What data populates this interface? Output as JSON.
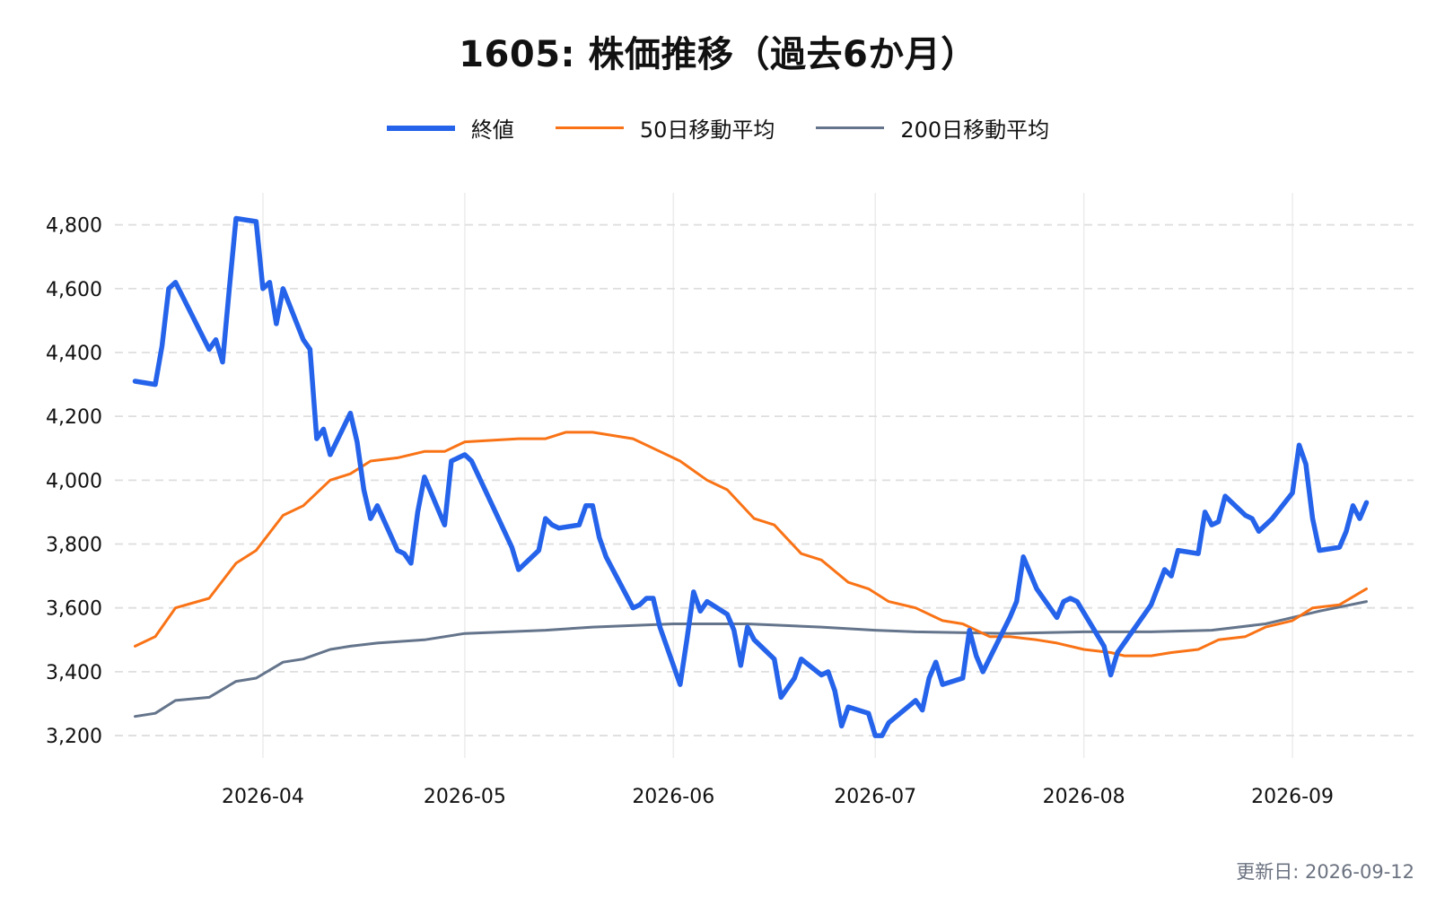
{
  "chart_data": {
    "type": "line",
    "title": "1605: 株価推移（過去6か月）",
    "xlabel": "",
    "ylabel": "",
    "x_range": [
      "2026-03-10",
      "2026-09-19"
    ],
    "ylim": [
      3130,
      4900
    ],
    "y_ticks": [
      3200,
      3400,
      3600,
      3800,
      4000,
      4200,
      4400,
      4600,
      4800
    ],
    "y_tick_labels": [
      "3,200",
      "3,400",
      "3,600",
      "3,800",
      "4,000",
      "4,200",
      "4,400",
      "4,600",
      "4,800"
    ],
    "x_ticks": [
      "2026-04-01",
      "2026-05-01",
      "2026-06-01",
      "2026-07-01",
      "2026-08-01",
      "2026-09-01"
    ],
    "x_tick_labels": [
      "2026-04",
      "2026-05",
      "2026-06",
      "2026-07",
      "2026-08",
      "2026-09"
    ],
    "grid": true,
    "legend_position": "top-center",
    "series": [
      {
        "name": "終値",
        "color": "#2563eb",
        "points": [
          [
            "2026-03-13",
            4310
          ],
          [
            "2026-03-16",
            4300
          ],
          [
            "2026-03-17",
            4420
          ],
          [
            "2026-03-18",
            4600
          ],
          [
            "2026-03-19",
            4620
          ],
          [
            "2026-03-24",
            4410
          ],
          [
            "2026-03-25",
            4440
          ],
          [
            "2026-03-26",
            4370
          ],
          [
            "2026-03-27",
            4600
          ],
          [
            "2026-03-28",
            4820
          ],
          [
            "2026-03-31",
            4810
          ],
          [
            "2026-04-01",
            4600
          ],
          [
            "2026-04-02",
            4620
          ],
          [
            "2026-04-03",
            4490
          ],
          [
            "2026-04-04",
            4600
          ],
          [
            "2026-04-07",
            4440
          ],
          [
            "2026-04-08",
            4410
          ],
          [
            "2026-04-09",
            4130
          ],
          [
            "2026-04-10",
            4160
          ],
          [
            "2026-04-11",
            4080
          ],
          [
            "2026-04-14",
            4210
          ],
          [
            "2026-04-15",
            4120
          ],
          [
            "2026-04-16",
            3970
          ],
          [
            "2026-04-17",
            3880
          ],
          [
            "2026-04-18",
            3920
          ],
          [
            "2026-04-21",
            3780
          ],
          [
            "2026-04-22",
            3770
          ],
          [
            "2026-04-23",
            3740
          ],
          [
            "2026-04-24",
            3900
          ],
          [
            "2026-04-25",
            4010
          ],
          [
            "2026-04-28",
            3860
          ],
          [
            "2026-04-29",
            4060
          ],
          [
            "2026-05-01",
            4080
          ],
          [
            "2026-05-02",
            4060
          ],
          [
            "2026-05-06",
            3880
          ],
          [
            "2026-05-08",
            3790
          ],
          [
            "2026-05-09",
            3720
          ],
          [
            "2026-05-12",
            3780
          ],
          [
            "2026-05-13",
            3880
          ],
          [
            "2026-05-14",
            3860
          ],
          [
            "2026-05-15",
            3850
          ],
          [
            "2026-05-18",
            3860
          ],
          [
            "2026-05-19",
            3920
          ],
          [
            "2026-05-20",
            3920
          ],
          [
            "2026-05-21",
            3820
          ],
          [
            "2026-05-22",
            3760
          ],
          [
            "2026-05-26",
            3600
          ],
          [
            "2026-05-27",
            3610
          ],
          [
            "2026-05-28",
            3630
          ],
          [
            "2026-05-29",
            3630
          ],
          [
            "2026-05-30",
            3540
          ],
          [
            "2026-06-02",
            3360
          ],
          [
            "2026-06-03",
            3500
          ],
          [
            "2026-06-04",
            3650
          ],
          [
            "2026-06-05",
            3590
          ],
          [
            "2026-06-06",
            3620
          ],
          [
            "2026-06-09",
            3580
          ],
          [
            "2026-06-10",
            3530
          ],
          [
            "2026-06-11",
            3420
          ],
          [
            "2026-06-12",
            3540
          ],
          [
            "2026-06-13",
            3500
          ],
          [
            "2026-06-16",
            3440
          ],
          [
            "2026-06-17",
            3320
          ],
          [
            "2026-06-19",
            3380
          ],
          [
            "2026-06-20",
            3440
          ],
          [
            "2026-06-23",
            3390
          ],
          [
            "2026-06-24",
            3400
          ],
          [
            "2026-06-25",
            3340
          ],
          [
            "2026-06-26",
            3230
          ],
          [
            "2026-06-27",
            3290
          ],
          [
            "2026-06-30",
            3270
          ],
          [
            "2026-07-01",
            3200
          ],
          [
            "2026-07-02",
            3200
          ],
          [
            "2026-07-03",
            3240
          ],
          [
            "2026-07-07",
            3310
          ],
          [
            "2026-07-08",
            3280
          ],
          [
            "2026-07-09",
            3380
          ],
          [
            "2026-07-10",
            3430
          ],
          [
            "2026-07-11",
            3360
          ],
          [
            "2026-07-14",
            3380
          ],
          [
            "2026-07-15",
            3530
          ],
          [
            "2026-07-16",
            3450
          ],
          [
            "2026-07-17",
            3400
          ],
          [
            "2026-07-21",
            3570
          ],
          [
            "2026-07-22",
            3620
          ],
          [
            "2026-07-23",
            3760
          ],
          [
            "2026-07-25",
            3660
          ],
          [
            "2026-07-28",
            3570
          ],
          [
            "2026-07-29",
            3620
          ],
          [
            "2026-07-30",
            3630
          ],
          [
            "2026-07-31",
            3620
          ],
          [
            "2026-08-04",
            3480
          ],
          [
            "2026-08-05",
            3390
          ],
          [
            "2026-08-06",
            3460
          ],
          [
            "2026-08-11",
            3610
          ],
          [
            "2026-08-13",
            3720
          ],
          [
            "2026-08-14",
            3700
          ],
          [
            "2026-08-15",
            3780
          ],
          [
            "2026-08-18",
            3770
          ],
          [
            "2026-08-19",
            3900
          ],
          [
            "2026-08-20",
            3860
          ],
          [
            "2026-08-21",
            3870
          ],
          [
            "2026-08-22",
            3950
          ],
          [
            "2026-08-25",
            3890
          ],
          [
            "2026-08-26",
            3880
          ],
          [
            "2026-08-27",
            3840
          ],
          [
            "2026-08-29",
            3880
          ],
          [
            "2026-09-01",
            3960
          ],
          [
            "2026-09-02",
            4110
          ],
          [
            "2026-09-03",
            4050
          ],
          [
            "2026-09-04",
            3880
          ],
          [
            "2026-09-05",
            3780
          ],
          [
            "2026-09-08",
            3790
          ],
          [
            "2026-09-09",
            3840
          ],
          [
            "2026-09-10",
            3920
          ],
          [
            "2026-09-11",
            3880
          ],
          [
            "2026-09-12",
            3930
          ]
        ]
      },
      {
        "name": "50日移動平均",
        "color": "#f97316",
        "points": [
          [
            "2026-03-13",
            3480
          ],
          [
            "2026-03-16",
            3510
          ],
          [
            "2026-03-19",
            3600
          ],
          [
            "2026-03-24",
            3630
          ],
          [
            "2026-03-28",
            3740
          ],
          [
            "2026-03-31",
            3780
          ],
          [
            "2026-04-04",
            3890
          ],
          [
            "2026-04-07",
            3920
          ],
          [
            "2026-04-11",
            4000
          ],
          [
            "2026-04-14",
            4020
          ],
          [
            "2026-04-17",
            4060
          ],
          [
            "2026-04-21",
            4070
          ],
          [
            "2026-04-25",
            4090
          ],
          [
            "2026-04-28",
            4090
          ],
          [
            "2026-05-01",
            4120
          ],
          [
            "2026-05-09",
            4130
          ],
          [
            "2026-05-13",
            4130
          ],
          [
            "2026-05-16",
            4150
          ],
          [
            "2026-05-20",
            4150
          ],
          [
            "2026-05-26",
            4130
          ],
          [
            "2026-05-30",
            4090
          ],
          [
            "2026-06-02",
            4060
          ],
          [
            "2026-06-06",
            4000
          ],
          [
            "2026-06-09",
            3970
          ],
          [
            "2026-06-13",
            3880
          ],
          [
            "2026-06-16",
            3860
          ],
          [
            "2026-06-20",
            3770
          ],
          [
            "2026-06-23",
            3750
          ],
          [
            "2026-06-27",
            3680
          ],
          [
            "2026-06-30",
            3660
          ],
          [
            "2026-07-03",
            3620
          ],
          [
            "2026-07-07",
            3600
          ],
          [
            "2026-07-11",
            3560
          ],
          [
            "2026-07-14",
            3550
          ],
          [
            "2026-07-18",
            3510
          ],
          [
            "2026-07-21",
            3510
          ],
          [
            "2026-07-25",
            3500
          ],
          [
            "2026-07-28",
            3490
          ],
          [
            "2026-08-01",
            3470
          ],
          [
            "2026-08-05",
            3460
          ],
          [
            "2026-08-07",
            3450
          ],
          [
            "2026-08-11",
            3450
          ],
          [
            "2026-08-14",
            3460
          ],
          [
            "2026-08-18",
            3470
          ],
          [
            "2026-08-21",
            3500
          ],
          [
            "2026-08-25",
            3510
          ],
          [
            "2026-08-28",
            3540
          ],
          [
            "2026-09-01",
            3560
          ],
          [
            "2026-09-04",
            3600
          ],
          [
            "2026-09-08",
            3610
          ],
          [
            "2026-09-12",
            3660
          ]
        ]
      },
      {
        "name": "200日移動平均",
        "color": "#64748b",
        "points": [
          [
            "2026-03-13",
            3260
          ],
          [
            "2026-03-16",
            3270
          ],
          [
            "2026-03-19",
            3310
          ],
          [
            "2026-03-24",
            3320
          ],
          [
            "2026-03-28",
            3370
          ],
          [
            "2026-03-31",
            3380
          ],
          [
            "2026-04-04",
            3430
          ],
          [
            "2026-04-07",
            3440
          ],
          [
            "2026-04-11",
            3470
          ],
          [
            "2026-04-14",
            3480
          ],
          [
            "2026-04-18",
            3490
          ],
          [
            "2026-04-25",
            3500
          ],
          [
            "2026-05-01",
            3520
          ],
          [
            "2026-05-13",
            3530
          ],
          [
            "2026-05-20",
            3540
          ],
          [
            "2026-06-01",
            3550
          ],
          [
            "2026-06-12",
            3550
          ],
          [
            "2026-06-23",
            3540
          ],
          [
            "2026-07-01",
            3530
          ],
          [
            "2026-07-07",
            3525
          ],
          [
            "2026-07-21",
            3520
          ],
          [
            "2026-08-01",
            3525
          ],
          [
            "2026-08-11",
            3525
          ],
          [
            "2026-08-20",
            3530
          ],
          [
            "2026-08-28",
            3550
          ],
          [
            "2026-09-01",
            3570
          ],
          [
            "2026-09-05",
            3590
          ],
          [
            "2026-09-12",
            3620
          ]
        ]
      }
    ]
  },
  "footer": {
    "updated": "更新日: 2026-09-12"
  }
}
